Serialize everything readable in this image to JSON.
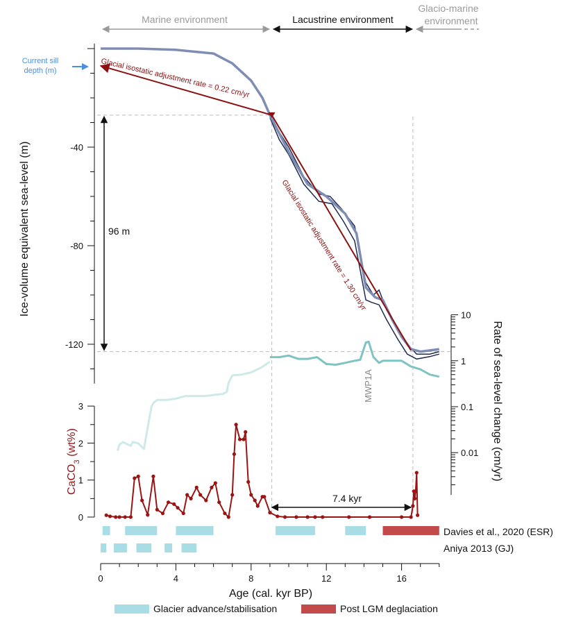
{
  "colors": {
    "marine": "#9a9a9a",
    "lacustrine": "#111111",
    "sill": "#4a90e2",
    "gia": "#8b1010",
    "sealevel_main": "#7f8db3",
    "sealevel_dark": "#1e2b4f",
    "rate": "#7fc3c3",
    "rate_light": "#cfe9e9",
    "caco3": "#9a1414",
    "glacier": "#a9dde6",
    "lgm": "#c24a4a",
    "guide": "#bbbbbb"
  },
  "environments": {
    "marine": "Marine environment",
    "lacustrine": "Lacustrine environment",
    "glacio_line1": "Glacio-marine",
    "glacio_line2": "environment"
  },
  "annotations": {
    "sill_line1": "Current sill",
    "sill_line2": "depth (m)",
    "gia_low": "Glacial isostatic adjustment rate = 0.22 cm/yr",
    "gia_high": "Glacial isostatic adjustment rate = 1.30 cm/yr",
    "span": "96 m",
    "duration": "7.4 kyr",
    "mwp": "MWP1A"
  },
  "axes": {
    "x_label": "Age (cal. kyr BP)",
    "y_top_label": "Ice-volume equivalent sea-level (m)",
    "y_right_label": "Rate of sea-level change (cm/yr)",
    "y_bottom_label": "CaCO",
    "y_bottom_sub": "3",
    "y_bottom_unit": " (wt%)"
  },
  "chart_data": {
    "type": "line",
    "x_axis": {
      "label": "Age (cal. kyr BP)",
      "range": [
        0,
        18
      ],
      "ticks": [
        "0",
        "4",
        "8",
        "12",
        "16"
      ]
    },
    "sea_level": {
      "ylabel": "Ice-volume equivalent sea-level (m)",
      "ylim": [
        -136,
        2
      ],
      "ticks": [
        "-40",
        "-80",
        "-120"
      ],
      "series": [
        {
          "values": [
            [
              0,
              0
            ],
            [
              2,
              0
            ],
            [
              4,
              -0.5
            ],
            [
              6,
              -2
            ],
            [
              7,
              -6
            ],
            [
              8,
              -13
            ],
            [
              8.6,
              -20
            ],
            [
              9,
              -27
            ],
            [
              10,
              -42
            ],
            [
              11,
              -55
            ],
            [
              12,
              -60
            ],
            [
              13,
              -67
            ],
            [
              13.6,
              -75
            ],
            [
              14.1,
              -97
            ],
            [
              14.6,
              -101
            ],
            [
              15,
              -102
            ],
            [
              15.5,
              -110
            ],
            [
              16,
              -117
            ],
            [
              16.5,
              -122
            ],
            [
              17,
              -123
            ],
            [
              18,
              -122
            ]
          ]
        },
        {
          "values": [
            [
              9,
              -27
            ],
            [
              9.5,
              -34
            ],
            [
              10,
              -40
            ],
            [
              10.8,
              -52
            ],
            [
              11.6,
              -59
            ],
            [
              12.2,
              -60
            ],
            [
              12.8,
              -65
            ],
            [
              13.5,
              -72
            ],
            [
              14.1,
              -95
            ],
            [
              14.5,
              -100
            ],
            [
              14.8,
              -98
            ],
            [
              15.2,
              -106
            ],
            [
              15.8,
              -114
            ],
            [
              16.3,
              -120
            ],
            [
              16.8,
              -124
            ],
            [
              17.5,
              -124
            ],
            [
              18,
              -123
            ]
          ]
        },
        {
          "values": [
            [
              9,
              -28
            ],
            [
              9.5,
              -37
            ],
            [
              10,
              -43
            ],
            [
              10.8,
              -55
            ],
            [
              11.6,
              -62
            ],
            [
              12.3,
              -63
            ],
            [
              12.9,
              -70
            ],
            [
              13.5,
              -78
            ],
            [
              14.1,
              -102
            ],
            [
              14.4,
              -103
            ],
            [
              14.8,
              -104
            ],
            [
              15.2,
              -110
            ],
            [
              15.8,
              -118
            ],
            [
              16.3,
              -124
            ],
            [
              16.8,
              -126
            ],
            [
              17.5,
              -125
            ],
            [
              18,
              -124
            ]
          ]
        }
      ],
      "current_sill_depth": -7,
      "gia_rates": [
        {
          "rate_cm_yr": 0.22,
          "from": [
            9.1,
            -27
          ],
          "to": [
            0,
            -7
          ]
        },
        {
          "rate_cm_yr": 1.3,
          "from": [
            9.1,
            -27
          ],
          "to": [
            16.5,
            -122.5
          ]
        }
      ],
      "span_m": 96,
      "span_from": -27,
      "span_to": -123
    },
    "rate_of_change": {
      "ylabel": "Rate of sea-level change (cm/yr)",
      "scale": "log",
      "ylim": [
        0.001,
        10
      ],
      "ticks": [
        "0.01",
        "0.1",
        "1",
        "10"
      ],
      "series": [
        {
          "values": [
            [
              0.9,
              0.011
            ],
            [
              1.0,
              0.015
            ],
            [
              1.2,
              0.017
            ],
            [
              1.6,
              0.014
            ],
            [
              1.7,
              0.017
            ],
            [
              2.0,
              0.016
            ],
            [
              2.3,
              0.012
            ],
            [
              2.5,
              0.035
            ],
            [
              2.6,
              0.06
            ],
            [
              2.7,
              0.1
            ],
            [
              2.8,
              0.12
            ],
            [
              3.0,
              0.14
            ],
            [
              3.2,
              0.14
            ],
            [
              3.5,
              0.14
            ],
            [
              4.0,
              0.15
            ],
            [
              4.5,
              0.17
            ],
            [
              5.0,
              0.17
            ],
            [
              5.5,
              0.17
            ],
            [
              6.0,
              0.18
            ],
            [
              6.5,
              0.19
            ],
            [
              6.7,
              0.21
            ],
            [
              6.8,
              0.33
            ],
            [
              7.0,
              0.48
            ],
            [
              7.5,
              0.5
            ],
            [
              8.0,
              0.56
            ],
            [
              8.5,
              0.7
            ],
            [
              9.0,
              0.95
            ]
          ]
        },
        {
          "values": [
            [
              9.0,
              1.2
            ],
            [
              9.5,
              1.2
            ],
            [
              10.0,
              1.3
            ],
            [
              10.5,
              1.1
            ],
            [
              11.0,
              1.1
            ],
            [
              11.5,
              1.2
            ],
            [
              12.0,
              0.85
            ],
            [
              12.5,
              0.82
            ],
            [
              13.0,
              0.9
            ],
            [
              13.5,
              1.0
            ],
            [
              13.8,
              1.05
            ],
            [
              14.1,
              2.5
            ],
            [
              14.25,
              2.6
            ],
            [
              14.5,
              1.2
            ],
            [
              14.8,
              0.9
            ],
            [
              15.0,
              1.0
            ],
            [
              15.5,
              1.0
            ],
            [
              16.0,
              1.0
            ],
            [
              16.5,
              0.75
            ],
            [
              17.0,
              0.65
            ],
            [
              17.5,
              0.5
            ],
            [
              18.0,
              0.45
            ]
          ]
        }
      ],
      "annotation": "MWP1A"
    },
    "caco3": {
      "ylabel": "CaCO3 (wt%)",
      "ylim": [
        0,
        3
      ],
      "ticks": [
        "0",
        "1",
        "2",
        "3"
      ],
      "values": [
        [
          0.3,
          0.05
        ],
        [
          0.5,
          0.02
        ],
        [
          0.8,
          0.0
        ],
        [
          1.0,
          0.0
        ],
        [
          1.3,
          0.0
        ],
        [
          1.6,
          0.0
        ],
        [
          1.8,
          1.05
        ],
        [
          2.0,
          1.1
        ],
        [
          2.2,
          0.45
        ],
        [
          2.5,
          0.06
        ],
        [
          2.8,
          1.1
        ],
        [
          3.0,
          0.2
        ],
        [
          3.3,
          0.1
        ],
        [
          3.6,
          0.4
        ],
        [
          3.9,
          0.35
        ],
        [
          4.1,
          0.25
        ],
        [
          4.4,
          0.1
        ],
        [
          4.6,
          0.6
        ],
        [
          4.8,
          0.5
        ],
        [
          5.1,
          0.8
        ],
        [
          5.3,
          0.6
        ],
        [
          5.6,
          0.45
        ],
        [
          5.9,
          0.8
        ],
        [
          6.1,
          0.92
        ],
        [
          6.3,
          0.4
        ],
        [
          6.6,
          0.1
        ],
        [
          6.8,
          0.0
        ],
        [
          7.0,
          0.6
        ],
        [
          7.1,
          1.7
        ],
        [
          7.2,
          2.5
        ],
        [
          7.4,
          2.1
        ],
        [
          7.6,
          2.1
        ],
        [
          7.7,
          2.3
        ],
        [
          7.85,
          0.95
        ],
        [
          8.0,
          0.6
        ],
        [
          8.2,
          0.45
        ],
        [
          8.35,
          0.3
        ],
        [
          8.6,
          0.55
        ],
        [
          8.7,
          0.55
        ],
        [
          9.0,
          0.12
        ],
        [
          9.4,
          0.02
        ],
        [
          9.8,
          0.0
        ],
        [
          10.4,
          0.0
        ],
        [
          11.0,
          0.0
        ],
        [
          11.4,
          0.0
        ],
        [
          11.8,
          0.0
        ],
        [
          13.2,
          0.0
        ],
        [
          14.3,
          0.0
        ],
        [
          16.0,
          0.0
        ],
        [
          16.5,
          0.0
        ],
        [
          16.6,
          0.3
        ],
        [
          16.65,
          0.7
        ],
        [
          16.7,
          0.5
        ],
        [
          16.75,
          0.7
        ],
        [
          16.8,
          1.2
        ],
        [
          16.85,
          0.05
        ]
      ]
    },
    "duration_kyr": 7.4,
    "duration_from": 9.1,
    "duration_to": 16.5,
    "environment_boundaries": [
      9.1,
      16.6
    ],
    "bars": [
      {
        "name": "Davies et al., 2020 (ESR)",
        "glacier": [
          [
            0.1,
            0.5
          ],
          [
            1.3,
            3.0
          ],
          [
            4.0,
            6.0
          ],
          [
            9.3,
            11.4
          ],
          [
            13.0,
            14.1
          ]
        ],
        "lgm": [
          [
            15.0,
            18.0
          ]
        ]
      },
      {
        "name": "Aniya 2013 (GJ)",
        "glacier": [
          [
            0.0,
            0.3
          ],
          [
            0.7,
            1.4
          ],
          [
            1.9,
            2.7
          ],
          [
            3.4,
            3.8
          ],
          [
            4.3,
            5.1
          ]
        ],
        "lgm": []
      }
    ],
    "legend": [
      "Glacier advance/stabilisation",
      "Post LGM deglaciation"
    ]
  }
}
